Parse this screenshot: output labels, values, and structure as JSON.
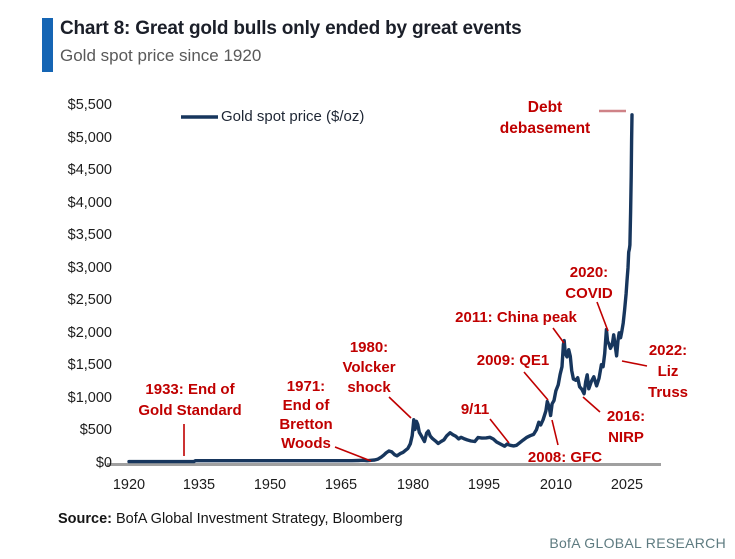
{
  "header": {
    "title": "Chart 8: Great gold bulls only ended by great events",
    "subtitle": "Gold spot price since 1920"
  },
  "legend": {
    "label": "Gold spot price ($/oz)"
  },
  "axes": {
    "y_ticks": [
      "$5,500",
      "$5,000",
      "$4,500",
      "$4,000",
      "$3,500",
      "$3,000",
      "$2,500",
      "$2,000",
      "$1,500",
      "$1,000",
      "$500",
      "$0"
    ],
    "x_ticks": [
      "1920",
      "1935",
      "1950",
      "1965",
      "1980",
      "1995",
      "2010",
      "2025"
    ]
  },
  "annotations": [
    {
      "id": "gold-standard",
      "text": "1933: End of\nGold Standard"
    },
    {
      "id": "bretton-woods",
      "text": "1971:\nEnd of\nBretton\nWoods"
    },
    {
      "id": "volcker",
      "text": "1980:\nVolcker\nshock"
    },
    {
      "id": "nine-eleven",
      "text": "9/11"
    },
    {
      "id": "gfc",
      "text": "2008: GFC"
    },
    {
      "id": "qe1",
      "text": "2009: QE1"
    },
    {
      "id": "china-peak",
      "text": "2011: China peak"
    },
    {
      "id": "nirp",
      "text": "2016:\nNIRP"
    },
    {
      "id": "covid",
      "text": "2020:\nCOVID"
    },
    {
      "id": "liz-truss",
      "text": "2022:\nLiz\nTruss"
    },
    {
      "id": "debt-debasement",
      "text": "Debt\ndebasement"
    }
  ],
  "footer": {
    "source_label": "Source:",
    "source_text": "BofA Global Investment Strategy, Bloomberg",
    "branding": "BofA GLOBAL RESEARCH"
  },
  "colors": {
    "accent_blue": "#1565b4",
    "title_ink": "#1b1f29",
    "subtitle_gray": "#595959",
    "line_navy": "#17365d",
    "annotation_red": "#c00000",
    "dash_salmon": "#cf8287",
    "axis_gray": "#a0a0a0",
    "legend_ink": "#1e2634",
    "brand_teal": "#5e7b80"
  },
  "chart_data": {
    "type": "line",
    "title": "Chart 8: Great gold bulls only ended by great events",
    "subtitle": "Gold spot price since 1920",
    "xlabel": "",
    "ylabel": "Gold spot price ($/oz)",
    "xlim": [
      1915,
      2032
    ],
    "ylim": [
      0,
      5500
    ],
    "x_ticks": [
      1920,
      1935,
      1950,
      1965,
      1980,
      1995,
      2010,
      2025
    ],
    "y_ticks": [
      0,
      500,
      1000,
      1500,
      2000,
      2500,
      3000,
      3500,
      4000,
      4500,
      5000,
      5500
    ],
    "grid": false,
    "legend_position": "top-left-inside",
    "series": [
      {
        "name": "Gold spot price ($/oz)",
        "color": "#17365d",
        "points": [
          [
            1920,
            21
          ],
          [
            1924,
            21
          ],
          [
            1928,
            21
          ],
          [
            1932,
            21
          ],
          [
            1933.7,
            21
          ],
          [
            1934,
            35
          ],
          [
            1940,
            35
          ],
          [
            1946,
            35
          ],
          [
            1952,
            35
          ],
          [
            1958,
            35
          ],
          [
            1964,
            35
          ],
          [
            1967,
            35
          ],
          [
            1968.4,
            39
          ],
          [
            1969.3,
            42
          ],
          [
            1970.2,
            36
          ],
          [
            1971,
            41
          ],
          [
            1971.8,
            46
          ],
          [
            1972.5,
            60
          ],
          [
            1973.2,
            90
          ],
          [
            1973.7,
            120
          ],
          [
            1974.2,
            155
          ],
          [
            1974.8,
            185
          ],
          [
            1975.4,
            170
          ],
          [
            1976,
            128
          ],
          [
            1976.5,
            110
          ],
          [
            1977.2,
            145
          ],
          [
            1977.8,
            165
          ],
          [
            1978.3,
            195
          ],
          [
            1978.8,
            225
          ],
          [
            1979.3,
            295
          ],
          [
            1979.7,
            420
          ],
          [
            1980.04,
            665
          ],
          [
            1980.3,
            515
          ],
          [
            1980.6,
            640
          ],
          [
            1980.9,
            590
          ],
          [
            1981.2,
            470
          ],
          [
            1981.7,
            410
          ],
          [
            1982.3,
            330
          ],
          [
            1982.75,
            460
          ],
          [
            1983.1,
            490
          ],
          [
            1983.5,
            415
          ],
          [
            1984,
            375
          ],
          [
            1984.6,
            340
          ],
          [
            1985.2,
            300
          ],
          [
            1985.8,
            330
          ],
          [
            1986.4,
            355
          ],
          [
            1987,
            420
          ],
          [
            1987.7,
            465
          ],
          [
            1988.3,
            435
          ],
          [
            1988.9,
            410
          ],
          [
            1989.5,
            370
          ],
          [
            1990,
            395
          ],
          [
            1990.6,
            375
          ],
          [
            1991.3,
            355
          ],
          [
            1992.1,
            338
          ],
          [
            1992.9,
            330
          ],
          [
            1993.6,
            392
          ],
          [
            1994.4,
            382
          ],
          [
            1995.3,
            386
          ],
          [
            1996.1,
            395
          ],
          [
            1996.8,
            368
          ],
          [
            1997.5,
            322
          ],
          [
            1998.3,
            292
          ],
          [
            1999.2,
            258
          ],
          [
            1999.7,
            290
          ],
          [
            2000.4,
            272
          ],
          [
            2001.1,
            262
          ],
          [
            2001.7,
            272
          ],
          [
            2002.4,
            312
          ],
          [
            2003.1,
            352
          ],
          [
            2003.9,
            395
          ],
          [
            2004.6,
            420
          ],
          [
            2005.3,
            440
          ],
          [
            2005.9,
            510
          ],
          [
            2006.4,
            625
          ],
          [
            2006.8,
            585
          ],
          [
            2007.3,
            665
          ],
          [
            2007.9,
            800
          ],
          [
            2008.2,
            945
          ],
          [
            2008.6,
            860
          ],
          [
            2008.9,
            730
          ],
          [
            2009.2,
            910
          ],
          [
            2009.6,
            960
          ],
          [
            2010,
            1110
          ],
          [
            2010.5,
            1200
          ],
          [
            2010.9,
            1360
          ],
          [
            2011.3,
            1480
          ],
          [
            2011.6,
            1820
          ],
          [
            2011.75,
            1880
          ],
          [
            2012,
            1680
          ],
          [
            2012.35,
            1630
          ],
          [
            2012.7,
            1740
          ],
          [
            2013.05,
            1640
          ],
          [
            2013.35,
            1420
          ],
          [
            2013.7,
            1290
          ],
          [
            2014.2,
            1270
          ],
          [
            2014.6,
            1310
          ],
          [
            2015,
            1170
          ],
          [
            2015.5,
            1130
          ],
          [
            2015.95,
            1065
          ],
          [
            2016.3,
            1250
          ],
          [
            2016.6,
            1355
          ],
          [
            2016.95,
            1140
          ],
          [
            2017.5,
            1255
          ],
          [
            2018,
            1325
          ],
          [
            2018.6,
            1185
          ],
          [
            2019.1,
            1300
          ],
          [
            2019.6,
            1510
          ],
          [
            2019.95,
            1480
          ],
          [
            2020.3,
            1680
          ],
          [
            2020.65,
            2050
          ],
          [
            2020.9,
            1870
          ],
          [
            2021.2,
            1830
          ],
          [
            2021.5,
            1760
          ],
          [
            2021.9,
            1820
          ],
          [
            2022.2,
            1970
          ],
          [
            2022.5,
            1810
          ],
          [
            2022.8,
            1645
          ],
          [
            2023.1,
            1880
          ],
          [
            2023.35,
            2000
          ],
          [
            2023.65,
            1925
          ],
          [
            2023.9,
            2020
          ],
          [
            2024.2,
            2150
          ],
          [
            2024.5,
            2350
          ],
          [
            2024.8,
            2600
          ],
          [
            2025,
            2800
          ],
          [
            2025.2,
            3000
          ],
          [
            2025.35,
            3240
          ],
          [
            2025.5,
            3290
          ],
          [
            2025.6,
            3350
          ],
          [
            2025.75,
            3850
          ],
          [
            2025.88,
            4400
          ],
          [
            2025.97,
            4950
          ],
          [
            2026.05,
            5350
          ]
        ]
      }
    ],
    "events": [
      {
        "label": "1933: End of Gold Standard",
        "year": 1933,
        "value": 21
      },
      {
        "label": "1971: End of Bretton Woods",
        "year": 1971,
        "value": 41
      },
      {
        "label": "1980: Volcker shock",
        "year": 1980,
        "value": 665
      },
      {
        "label": "9/11",
        "year": 2001,
        "value": 271
      },
      {
        "label": "2008: GFC",
        "year": 2008.9,
        "value": 730
      },
      {
        "label": "2009: QE1",
        "year": 2009.6,
        "value": 960
      },
      {
        "label": "2011: China peak",
        "year": 2011.75,
        "value": 1880
      },
      {
        "label": "2016: NIRP",
        "year": 2015.95,
        "value": 1065
      },
      {
        "label": "2020: COVID",
        "year": 2020.65,
        "value": 2050
      },
      {
        "label": "2022: Liz Truss",
        "year": 2022.8,
        "value": 1645
      },
      {
        "label": "Debt debasement",
        "year": 2026,
        "value": 5350
      }
    ]
  }
}
